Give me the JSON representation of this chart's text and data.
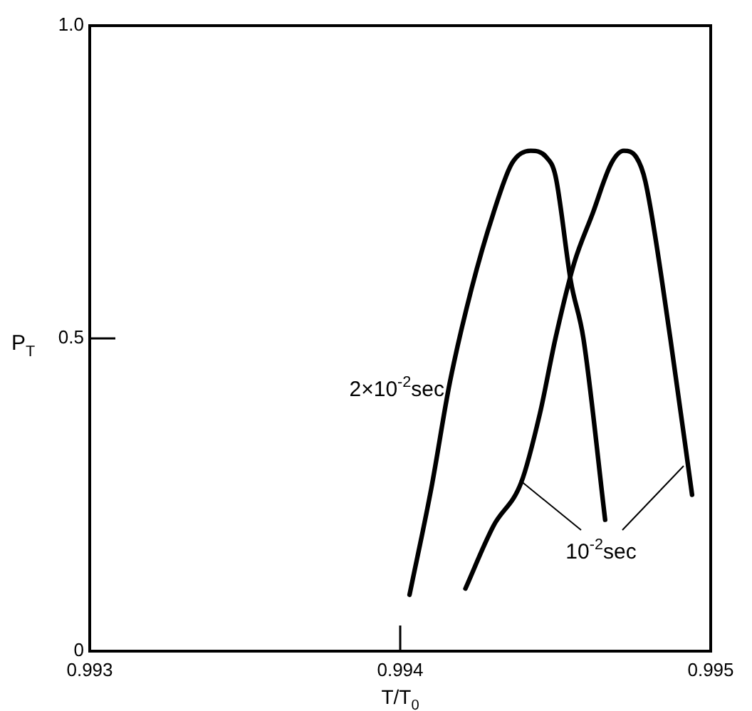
{
  "chart_data": {
    "type": "line",
    "xlabel": "T/T$_{0}$",
    "ylabel": "P$_{T}$",
    "xlim": [
      0.993,
      0.995
    ],
    "ylim": [
      0,
      1
    ],
    "xticks": [
      0.993,
      0.994,
      0.995
    ],
    "yticks": [
      0,
      0.5,
      {
        "value": 1,
        "label": "1.0"
      }
    ],
    "grid": false,
    "marker": "none",
    "line_style": "solid",
    "series": [
      {
        "name": "2×10$^{-2}$sec",
        "color": "#000000",
        "x": [
          0.99403,
          0.9941,
          0.99416,
          0.99423,
          0.9943,
          0.99436,
          0.99442,
          0.99447,
          0.9945,
          0.99455,
          0.99459,
          0.99466
        ],
        "values": [
          0.09,
          0.26,
          0.43,
          0.58,
          0.7,
          0.78,
          0.8,
          0.79,
          0.76,
          0.59,
          0.5,
          0.21
        ]
      },
      {
        "name": "10$^{-2}$sec",
        "color": "#000000",
        "x": [
          0.99421,
          0.9943,
          0.99439,
          0.99445,
          0.9945,
          0.99456,
          0.99462,
          0.99468,
          0.99472,
          0.99476,
          0.99479,
          0.99487,
          0.99494
        ],
        "values": [
          0.1,
          0.2,
          0.27,
          0.38,
          0.5,
          0.62,
          0.7,
          0.78,
          0.8,
          0.79,
          0.75,
          0.5,
          0.25
        ]
      }
    ]
  }
}
